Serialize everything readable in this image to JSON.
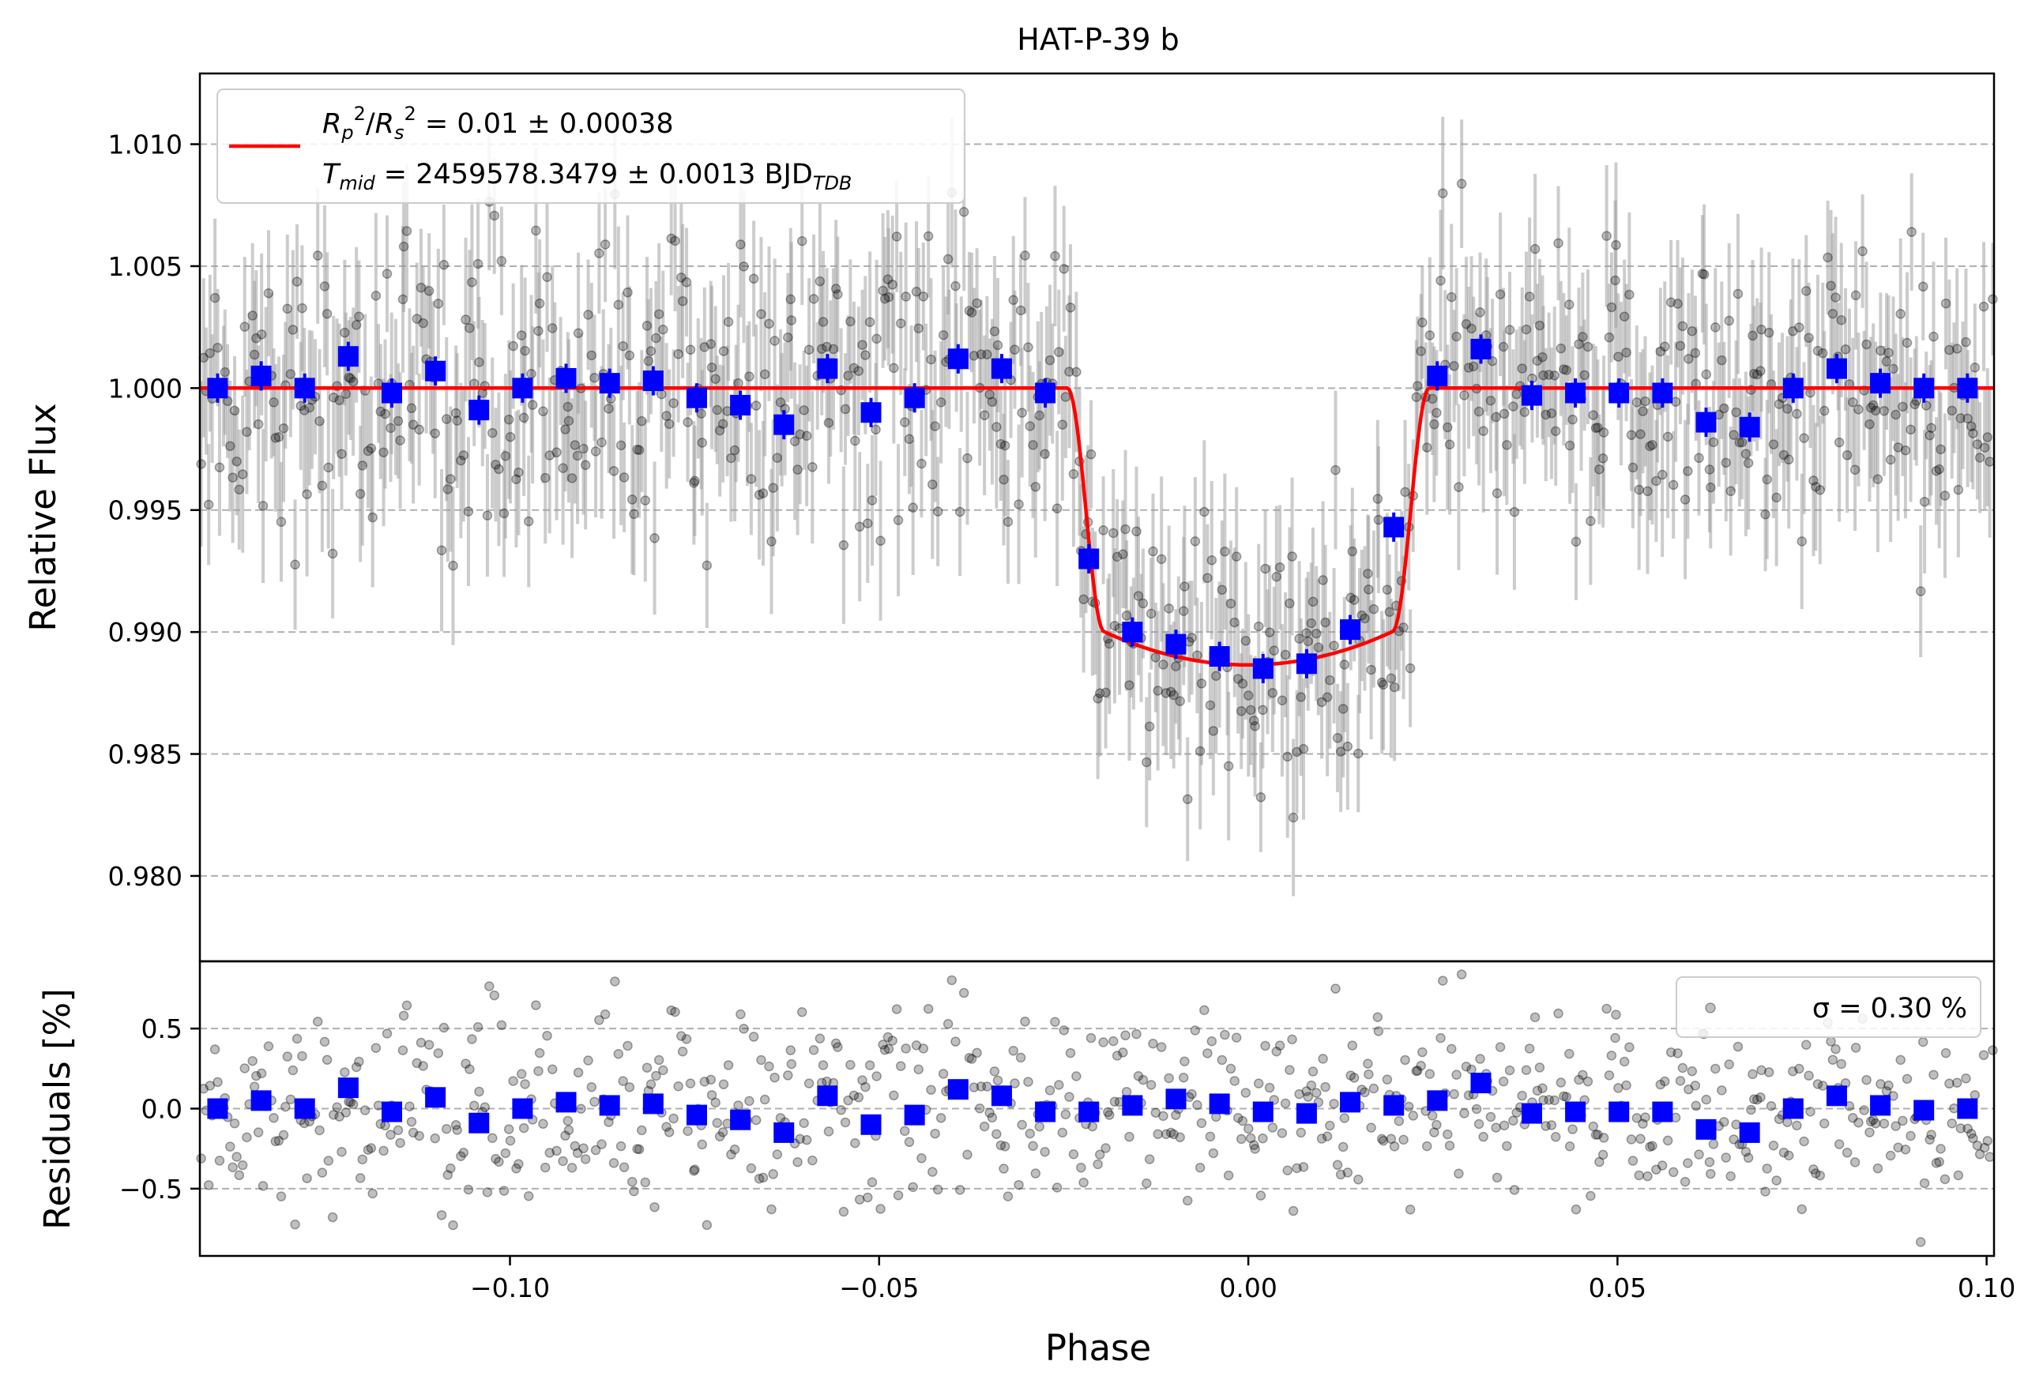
{
  "chart_data": [
    {
      "type": "scatter",
      "title": "HAT-P-39 b",
      "ylabel": "Relative Flux",
      "xlim": [
        -0.142,
        0.101
      ],
      "ylim": [
        0.9765,
        1.0129
      ],
      "y_ticks": [
        "0.980",
        "0.985",
        "0.990",
        "0.995",
        "1.000",
        "1.005",
        "1.010"
      ],
      "grid": "y-dashed",
      "legend": {
        "placement": "top-left",
        "line1": "R_p^2/R_s^2 = 0.01 ± 0.00038",
        "line2": "T_mid = 2459578.3479 ± 0.0013 BJD_TDB"
      },
      "model": {
        "name": "transit model",
        "color": "#ff0000",
        "baseline": 1.0,
        "depth_center": 0.98865,
        "ingress_start": -0.0245,
        "ingress_end": -0.0195,
        "egress_start": 0.0195,
        "egress_end": 0.0245
      },
      "binned": {
        "color": "#0000ff",
        "x": [
          -0.1396,
          -0.1337,
          -0.1278,
          -0.1219,
          -0.116,
          -0.1101,
          -0.1042,
          -0.0983,
          -0.0924,
          -0.0865,
          -0.0806,
          -0.0747,
          -0.0688,
          -0.0629,
          -0.057,
          -0.0511,
          -0.0452,
          -0.0393,
          -0.0334,
          -0.0275,
          -0.0216,
          -0.0157,
          -0.0098,
          -0.0039,
          0.002,
          0.0079,
          0.0138,
          0.0197,
          0.0256,
          0.0315,
          0.0384,
          0.0443,
          0.0502,
          0.0561,
          0.062,
          0.0679,
          0.0738,
          0.0797,
          0.0856,
          0.0915,
          0.0974
        ],
        "y": [
          1.0,
          1.0005,
          1.0,
          1.0013,
          0.9998,
          1.0007,
          0.9991,
          1.0,
          1.0004,
          1.0002,
          1.0003,
          0.9996,
          0.9993,
          0.9985,
          1.0008,
          0.999,
          0.9996,
          1.0012,
          1.0008,
          0.9998,
          0.993,
          0.99,
          0.9895,
          0.989,
          0.9885,
          0.9887,
          0.9901,
          0.9943,
          1.0005,
          1.0016,
          0.9997,
          0.9998,
          0.9998,
          0.9998,
          0.9986,
          0.9984,
          1.0,
          1.0008,
          1.0002,
          1.0,
          1.0
        ],
        "yerr": 0.0006
      }
    },
    {
      "type": "scatter",
      "xlabel": "Phase",
      "ylabel": "Residuals [%]",
      "xlim": [
        -0.142,
        0.101
      ],
      "ylim": [
        -0.92,
        0.92
      ],
      "x_ticks": [
        "−0.10",
        "−0.05",
        "0.00",
        "0.05",
        "0.10"
      ],
      "x_tick_values": [
        -0.1,
        -0.05,
        0.0,
        0.05,
        0.1
      ],
      "y_ticks": [
        "−0.5",
        "0.0",
        "0.5"
      ],
      "y_tick_values": [
        -0.5,
        0.0,
        0.5
      ],
      "grid": "y-dashed",
      "legend": {
        "placement": "top-right",
        "text": "σ = 0.30 %"
      },
      "binned": {
        "color": "#0000ff",
        "y": [
          0.0,
          0.05,
          0.0,
          0.13,
          -0.02,
          0.07,
          -0.09,
          0.0,
          0.04,
          0.02,
          0.03,
          -0.04,
          -0.07,
          -0.15,
          0.08,
          -0.1,
          -0.04,
          0.12,
          0.08,
          -0.02,
          -0.02,
          0.02,
          0.06,
          0.03,
          -0.02,
          -0.03,
          0.04,
          0.02,
          0.05,
          0.16,
          -0.03,
          -0.02,
          -0.02,
          -0.02,
          -0.13,
          -0.15,
          0.0,
          0.08,
          0.02,
          -0.01,
          0.0
        ]
      }
    }
  ]
}
